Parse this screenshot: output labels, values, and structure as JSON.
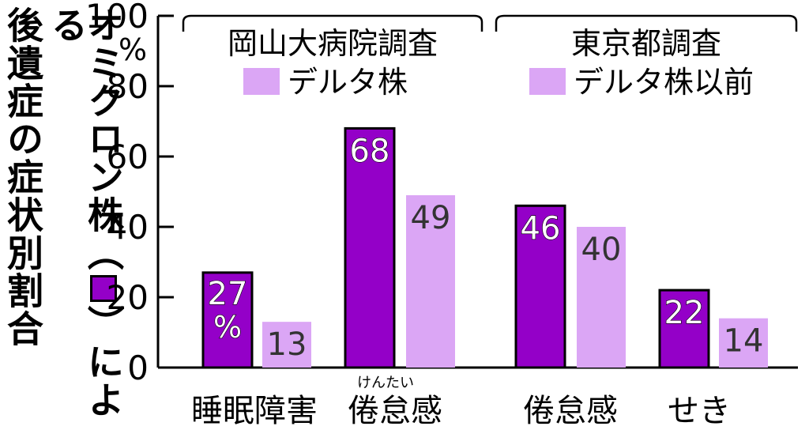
{
  "title_line1": "後遺症の症状別割合",
  "title_line2_part1": "オミクロン株（",
  "title_line2_part2": "）による",
  "chart_data": {
    "type": "bar",
    "y_ticks": [
      0,
      20,
      40,
      60,
      80,
      100
    ],
    "y_unit": "%",
    "ylim": [
      0,
      100
    ],
    "grid": false,
    "groups": [
      {
        "name": "岡山大病院調査",
        "legend": "デルタ株",
        "categories": [
          {
            "label": "睡眠障害",
            "values": [
              27,
              13
            ],
            "value_labels": [
              "27",
              "13"
            ],
            "unit_label": "%"
          },
          {
            "label": "倦怠感",
            "ruby": "けんたい",
            "values": [
              68,
              49
            ],
            "value_labels": [
              "68",
              "49"
            ]
          }
        ]
      },
      {
        "name": "東京都調査",
        "legend": "デルタ株以前",
        "categories": [
          {
            "label": "倦怠感",
            "values": [
              46,
              40
            ],
            "value_labels": [
              "46",
              "40"
            ]
          },
          {
            "label": "せき",
            "values": [
              22,
              14
            ],
            "value_labels": [
              "22",
              "14"
            ]
          }
        ]
      }
    ],
    "colors": {
      "omicron": "#9400c8",
      "comparison": "#dba6f5",
      "axis": "#000000"
    }
  }
}
